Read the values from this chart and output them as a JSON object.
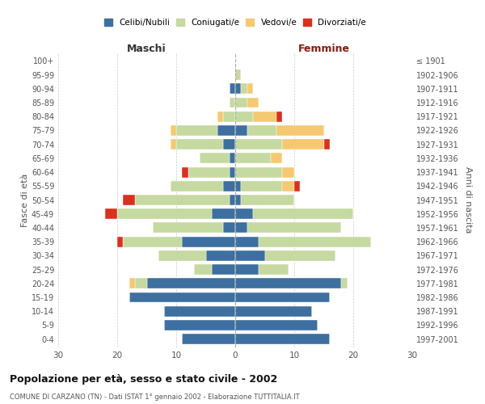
{
  "age_groups": [
    "0-4",
    "5-9",
    "10-14",
    "15-19",
    "20-24",
    "25-29",
    "30-34",
    "35-39",
    "40-44",
    "45-49",
    "50-54",
    "55-59",
    "60-64",
    "65-69",
    "70-74",
    "75-79",
    "80-84",
    "85-89",
    "90-94",
    "95-99",
    "100+"
  ],
  "birth_years": [
    "1997-2001",
    "1992-1996",
    "1987-1991",
    "1982-1986",
    "1977-1981",
    "1972-1976",
    "1967-1971",
    "1962-1966",
    "1957-1961",
    "1952-1956",
    "1947-1951",
    "1942-1946",
    "1937-1941",
    "1932-1936",
    "1927-1931",
    "1922-1926",
    "1917-1921",
    "1912-1916",
    "1907-1911",
    "1902-1906",
    "≤ 1901"
  ],
  "maschi": {
    "celibi": [
      9,
      12,
      12,
      18,
      15,
      4,
      5,
      9,
      2,
      4,
      1,
      2,
      1,
      1,
      2,
      3,
      0,
      0,
      1,
      0,
      0
    ],
    "coniugati": [
      0,
      0,
      0,
      0,
      2,
      3,
      8,
      10,
      12,
      16,
      16,
      9,
      7,
      5,
      8,
      7,
      2,
      1,
      0,
      0,
      0
    ],
    "vedovi": [
      0,
      0,
      0,
      0,
      1,
      0,
      0,
      0,
      0,
      0,
      0,
      0,
      0,
      0,
      1,
      1,
      1,
      0,
      0,
      0,
      0
    ],
    "divorziati": [
      0,
      0,
      0,
      0,
      0,
      0,
      0,
      1,
      0,
      2,
      2,
      0,
      1,
      0,
      0,
      0,
      0,
      0,
      0,
      0,
      0
    ]
  },
  "femmine": {
    "nubili": [
      16,
      14,
      13,
      16,
      18,
      4,
      5,
      4,
      2,
      3,
      1,
      1,
      0,
      0,
      0,
      2,
      0,
      0,
      1,
      0,
      0
    ],
    "coniugate": [
      0,
      0,
      0,
      0,
      1,
      5,
      12,
      19,
      16,
      17,
      9,
      7,
      8,
      6,
      8,
      5,
      3,
      2,
      1,
      1,
      0
    ],
    "vedove": [
      0,
      0,
      0,
      0,
      0,
      0,
      0,
      0,
      0,
      0,
      0,
      2,
      2,
      2,
      7,
      8,
      4,
      2,
      1,
      0,
      0
    ],
    "divorziate": [
      0,
      0,
      0,
      0,
      0,
      0,
      0,
      0,
      0,
      0,
      0,
      1,
      0,
      0,
      1,
      0,
      1,
      0,
      0,
      0,
      0
    ]
  },
  "colors": {
    "celibi": "#3d6fa0",
    "coniugati": "#c5d9a0",
    "vedovi": "#f5c971",
    "divorziati": "#d93020"
  },
  "title": "Popolazione per età, sesso e stato civile - 2002",
  "subtitle": "COMUNE DI CARZANO (TN) - Dati ISTAT 1° gennaio 2002 - Elaborazione TUTTITALIA.IT",
  "xlabel_left": "Maschi",
  "xlabel_right": "Femmine",
  "ylabel_left": "Fasce di età",
  "ylabel_right": "Anni di nascita",
  "xlim": 30,
  "background_color": "#ffffff",
  "grid_color": "#cccccc"
}
